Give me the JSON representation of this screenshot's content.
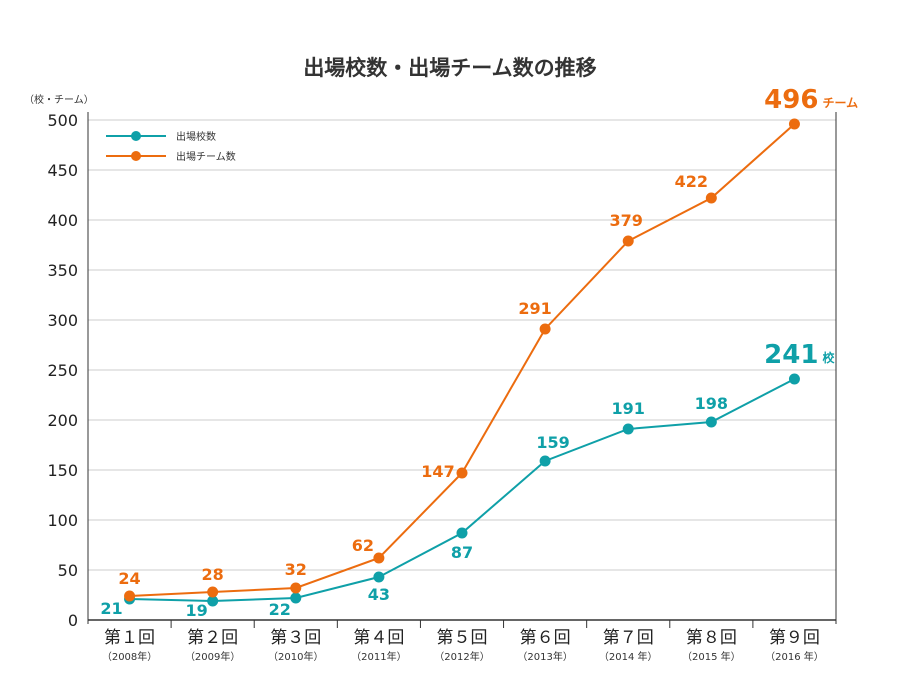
{
  "chart_data": {
    "type": "line",
    "title": "出場校数・出場チーム数の推移",
    "ylabel": "（校・チーム）",
    "xlabel": "",
    "ylim": [
      0,
      500
    ],
    "yticks": [
      0,
      50,
      100,
      150,
      200,
      250,
      300,
      350,
      400,
      450,
      500
    ],
    "grid": "horizontal",
    "legend_position": "top-left",
    "categories": [
      "第１回",
      "第２回",
      "第３回",
      "第４回",
      "第５回",
      "第６回",
      "第７回",
      "第８回",
      "第９回"
    ],
    "category_years": [
      "（2008年）",
      "（2009年）",
      "（2010年）",
      "（2011年）",
      "（2012年）",
      "（2013年）",
      "（2014 年）",
      "（2015 年）",
      "（2016 年）"
    ],
    "series": [
      {
        "name": "出場校数",
        "color": "#0fa0a8",
        "values": [
          21,
          19,
          22,
          43,
          87,
          159,
          191,
          198,
          241
        ],
        "end_label": "241",
        "end_suffix": "校"
      },
      {
        "name": "出場チーム数",
        "color": "#ec6c0f",
        "values": [
          24,
          28,
          32,
          62,
          147,
          291,
          379,
          422,
          496
        ],
        "end_label": "496",
        "end_suffix": "チーム"
      }
    ]
  }
}
